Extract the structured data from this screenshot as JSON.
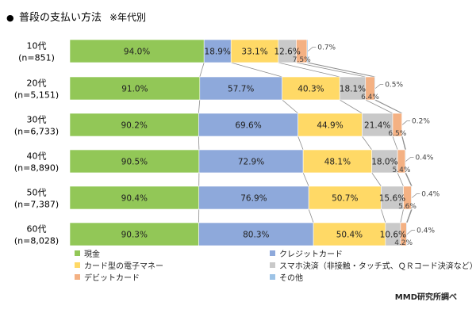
{
  "chart_data": {
    "type": "bar",
    "orientation": "horizontal",
    "stacked": true,
    "title": "普段の支払い方法",
    "subtitle": "※年代別",
    "title_bullet": "●",
    "categories": [
      {
        "label": "10代",
        "n": "(n=851)"
      },
      {
        "label": "20代",
        "n": "(n=5,151)"
      },
      {
        "label": "30代",
        "n": "(n=6,733)"
      },
      {
        "label": "40代",
        "n": "(n=8,890)"
      },
      {
        "label": "50代",
        "n": "(n=7,387)"
      },
      {
        "label": "60代",
        "n": "(n=8,028)"
      }
    ],
    "series": [
      {
        "name": "現金",
        "color": "#92c757",
        "values": [
          94.0,
          91.0,
          90.2,
          90.5,
          90.4,
          90.3
        ]
      },
      {
        "name": "クレジットカード",
        "color": "#8ea9db",
        "values": [
          18.9,
          57.7,
          69.6,
          72.9,
          76.9,
          80.3
        ]
      },
      {
        "name": "カード型の電子マネー",
        "color": "#ffd966",
        "values": [
          33.1,
          40.3,
          44.9,
          48.1,
          50.7,
          50.4
        ]
      },
      {
        "name": "スマホ決済（非接触・タッチ式、ＱＲコード決済など）",
        "color": "#c9c9c9",
        "values": [
          12.6,
          18.1,
          21.4,
          18.0,
          15.6,
          10.6
        ]
      },
      {
        "name": "デビットカード",
        "color": "#f4b183",
        "values": [
          7.5,
          6.4,
          6.5,
          5.4,
          5.6,
          4.2
        ]
      },
      {
        "name": "その他",
        "color": "#9dc3e6",
        "values": [
          0.7,
          0.5,
          0.2,
          0.4,
          0.4,
          0.4
        ]
      }
    ],
    "data_labels": [
      [
        "94.0%",
        "18.9%",
        "33.1%",
        "12.6%",
        "7.5%",
        "0.7%"
      ],
      [
        "91.0%",
        "57.7%",
        "40.3%",
        "18.1%",
        "6.4%",
        "0.5%"
      ],
      [
        "90.2%",
        "69.6%",
        "44.9%",
        "21.4%",
        "6.5%",
        "0.2%"
      ],
      [
        "90.5%",
        "72.9%",
        "48.1%",
        "18.0%",
        "5.4%",
        "0.4%"
      ],
      [
        "90.4%",
        "76.9%",
        "50.7%",
        "15.6%",
        "5.6%",
        "0.4%"
      ],
      [
        "90.3%",
        "80.3%",
        "50.4%",
        "10.6%",
        "4.2%",
        "0.4%"
      ]
    ],
    "legend_position": "bottom",
    "grid": false
  },
  "source": "MMD研究所調べ"
}
